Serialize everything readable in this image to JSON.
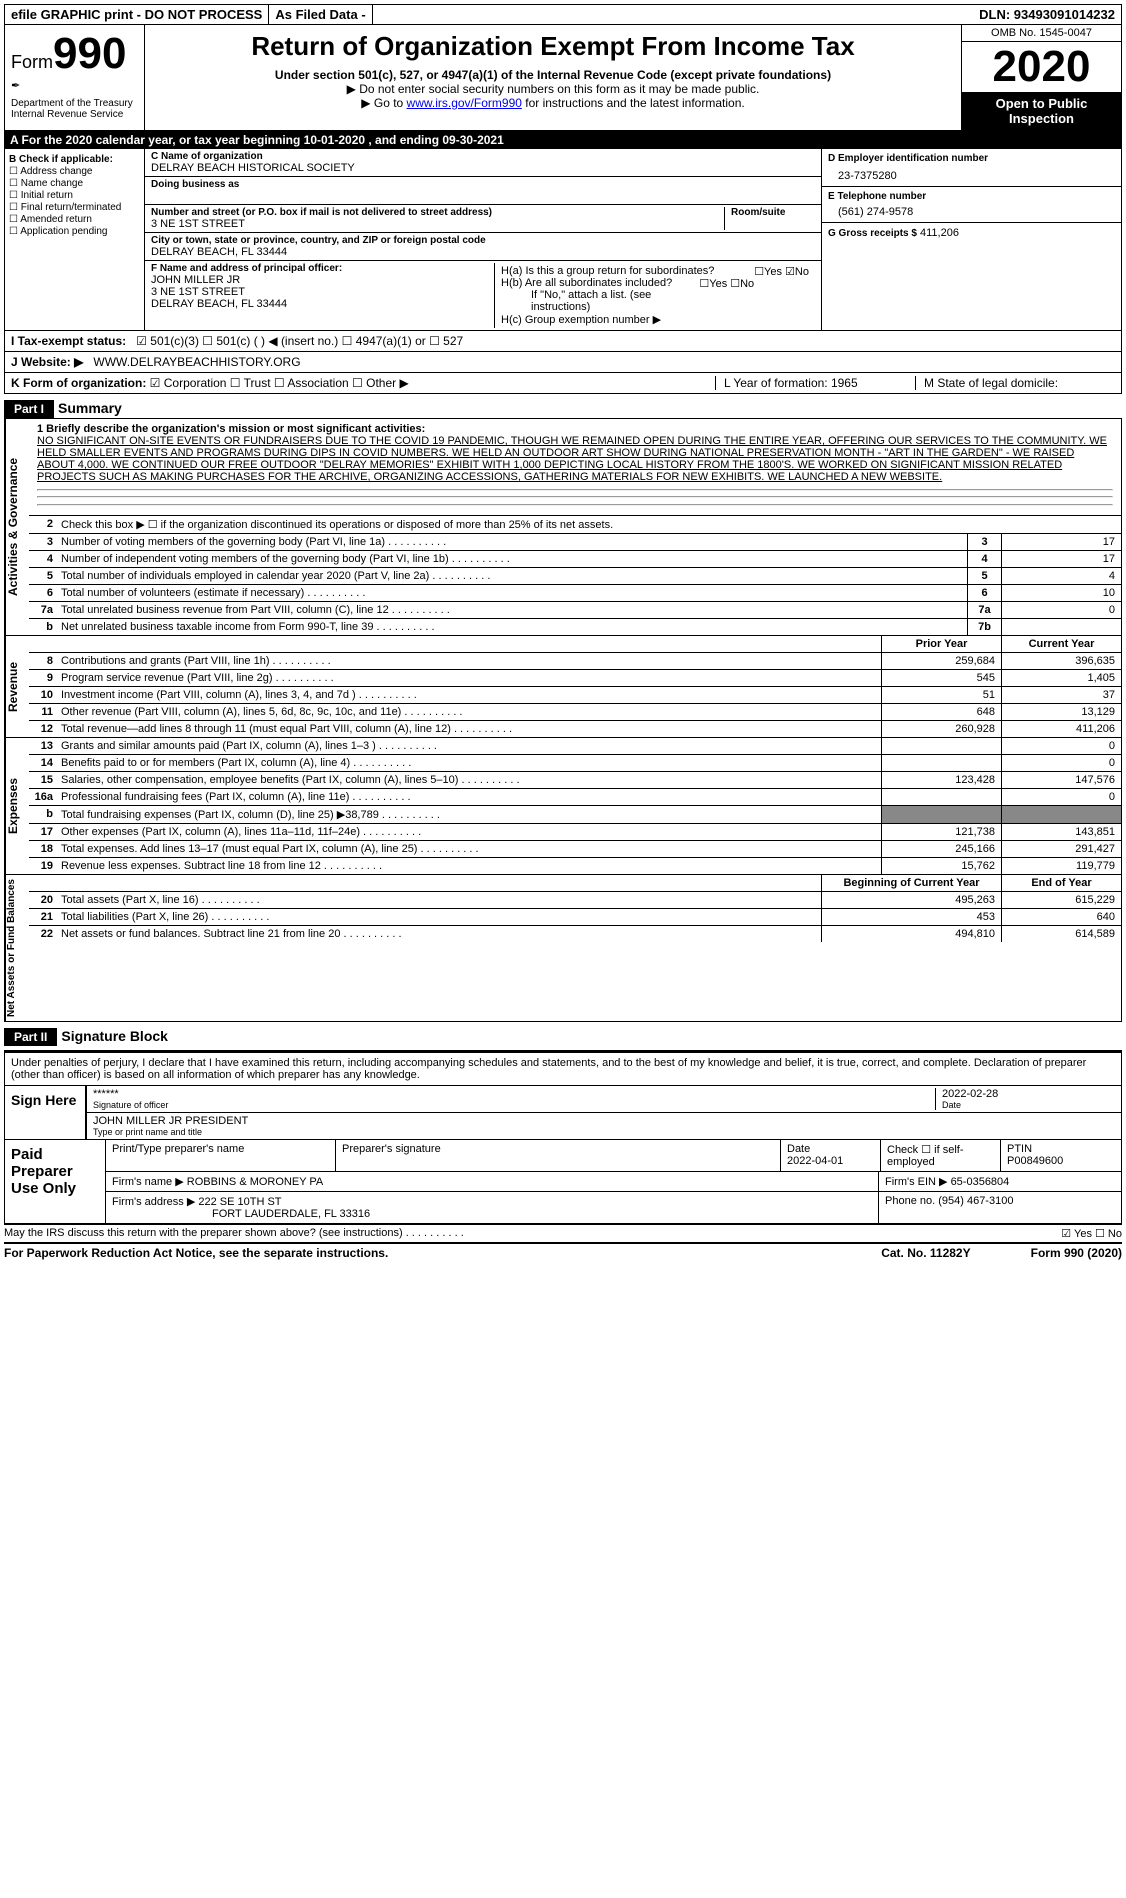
{
  "topbar": {
    "efile": "efile GRAPHIC print - DO NOT PROCESS",
    "asfiled": "As Filed Data -",
    "dln": "DLN: 93493091014232"
  },
  "header": {
    "form_prefix": "Form",
    "form_number": "990",
    "dept": "Department of the Treasury\nInternal Revenue Service",
    "title": "Return of Organization Exempt From Income Tax",
    "subtitle": "Under section 501(c), 527, or 4947(a)(1) of the Internal Revenue Code (except private foundations)",
    "note1": "▶ Do not enter social security numbers on this form as it may be made public.",
    "note2_pre": "▶ Go to ",
    "note2_link": "www.irs.gov/Form990",
    "note2_post": " for instructions and the latest information.",
    "omb": "OMB No. 1545-0047",
    "year": "2020",
    "open": "Open to Public Inspection"
  },
  "rowA": "A   For the 2020 calendar year, or tax year beginning 10-01-2020   , and ending 09-30-2021",
  "B": {
    "header": "B Check if applicable:",
    "items": [
      "Address change",
      "Name change",
      "Initial return",
      "Final return/terminated",
      "Amended return",
      "Application pending"
    ]
  },
  "C": {
    "name_label": "C Name of organization",
    "name": "DELRAY BEACH HISTORICAL SOCIETY",
    "dba_label": "Doing business as",
    "street_label": "Number and street (or P.O. box if mail is not delivered to street address)",
    "room_label": "Room/suite",
    "street": "3 NE 1ST STREET",
    "city_label": "City or town, state or province, country, and ZIP or foreign postal code",
    "city": "DELRAY BEACH, FL  33444",
    "officer_label": "F  Name and address of principal officer:",
    "officer": "JOHN MILLER JR\n3 NE 1ST STREET\nDELRAY BEACH, FL  33444"
  },
  "D": {
    "ein_label": "D Employer identification number",
    "ein": "23-7375280",
    "tel_label": "E Telephone number",
    "tel": "(561) 274-9578",
    "gross_label": "G Gross receipts $",
    "gross": "411,206"
  },
  "H": {
    "a": "H(a)  Is this a group return for subordinates?",
    "a_no": "☑No",
    "a_yes": "☐Yes",
    "b": "H(b)  Are all subordinates included?",
    "b_yn": "☐Yes  ☐No",
    "b_note": "If \"No,\" attach a list. (see instructions)",
    "c": "H(c)  Group exemption number ▶"
  },
  "I": {
    "label": "I   Tax-exempt status:",
    "opts": "☑ 501(c)(3)   ☐ 501(c) (  ) ◀ (insert no.)   ☐ 4947(a)(1) or   ☐ 527"
  },
  "J": {
    "label": "J   Website: ▶",
    "val": "WWW.DELRAYBEACHHISTORY.ORG"
  },
  "K": {
    "label": "K Form of organization:",
    "opts": "☑ Corporation  ☐ Trust  ☐ Association  ☐ Other ▶",
    "L": "L Year of formation: 1965",
    "M": "M State of legal domicile:"
  },
  "part1": {
    "tab": "Part I",
    "title": "Summary"
  },
  "mission": {
    "label": "1  Briefly describe the organization's mission or most significant activities:",
    "text": "NO SIGNIFICANT ON-SITE EVENTS OR FUNDRAISERS DUE TO THE COVID 19 PANDEMIC, THOUGH WE REMAINED OPEN DURING THE ENTIRE YEAR, OFFERING OUR SERVICES TO THE COMMUNITY. WE HELD SMALLER EVENTS AND PROGRAMS DURING DIPS IN COVID NUMBERS. WE HELD AN OUTDOOR ART SHOW DURING NATIONAL PRESERVATION MONTH - \"ART IN THE GARDEN\" - WE RAISED ABOUT 4,000. WE CONTINUED OUR FREE OUTDOOR \"DELRAY MEMORIES\" EXHIBIT WITH 1,000 DEPICTING LOCAL HISTORY FROM THE 1800'S. WE WORKED ON SIGNIFICANT MISSION RELATED PROJECTS SUCH AS MAKING PURCHASES FOR THE ARCHIVE, ORGANIZING ACCESSIONS, GATHERING MATERIALS FOR NEW EXHIBITS. WE LAUNCHED A NEW WEBSITE."
  },
  "gov": {
    "side": "Activities & Governance",
    "l2": "Check this box ▶ ☐ if the organization discontinued its operations or disposed of more than 25% of its net assets.",
    "lines": [
      {
        "n": "3",
        "t": "Number of voting members of the governing body (Part VI, line 1a)",
        "b": "3",
        "v": "17"
      },
      {
        "n": "4",
        "t": "Number of independent voting members of the governing body (Part VI, line 1b)",
        "b": "4",
        "v": "17"
      },
      {
        "n": "5",
        "t": "Total number of individuals employed in calendar year 2020 (Part V, line 2a)",
        "b": "5",
        "v": "4"
      },
      {
        "n": "6",
        "t": "Total number of volunteers (estimate if necessary)",
        "b": "6",
        "v": "10"
      },
      {
        "n": "7a",
        "t": "Total unrelated business revenue from Part VIII, column (C), line 12",
        "b": "7a",
        "v": "0"
      },
      {
        "n": "b",
        "t": "Net unrelated business taxable income from Form 990-T, line 39",
        "b": "7b",
        "v": ""
      }
    ]
  },
  "rev": {
    "side": "Revenue",
    "hdr_prior": "Prior Year",
    "hdr_curr": "Current Year",
    "lines": [
      {
        "n": "8",
        "t": "Contributions and grants (Part VIII, line 1h)",
        "p": "259,684",
        "c": "396,635"
      },
      {
        "n": "9",
        "t": "Program service revenue (Part VIII, line 2g)",
        "p": "545",
        "c": "1,405"
      },
      {
        "n": "10",
        "t": "Investment income (Part VIII, column (A), lines 3, 4, and 7d )",
        "p": "51",
        "c": "37"
      },
      {
        "n": "11",
        "t": "Other revenue (Part VIII, column (A), lines 5, 6d, 8c, 9c, 10c, and 11e)",
        "p": "648",
        "c": "13,129"
      },
      {
        "n": "12",
        "t": "Total revenue—add lines 8 through 11 (must equal Part VIII, column (A), line 12)",
        "p": "260,928",
        "c": "411,206"
      }
    ]
  },
  "exp": {
    "side": "Expenses",
    "lines": [
      {
        "n": "13",
        "t": "Grants and similar amounts paid (Part IX, column (A), lines 1–3 )",
        "p": "",
        "c": "0"
      },
      {
        "n": "14",
        "t": "Benefits paid to or for members (Part IX, column (A), line 4)",
        "p": "",
        "c": "0"
      },
      {
        "n": "15",
        "t": "Salaries, other compensation, employee benefits (Part IX, column (A), lines 5–10)",
        "p": "123,428",
        "c": "147,576"
      },
      {
        "n": "16a",
        "t": "Professional fundraising fees (Part IX, column (A), line 11e)",
        "p": "",
        "c": "0"
      },
      {
        "n": "b",
        "t": "Total fundraising expenses (Part IX, column (D), line 25) ▶38,789",
        "p": "—",
        "c": "—"
      },
      {
        "n": "17",
        "t": "Other expenses (Part IX, column (A), lines 11a–11d, 11f–24e)",
        "p": "121,738",
        "c": "143,851"
      },
      {
        "n": "18",
        "t": "Total expenses. Add lines 13–17 (must equal Part IX, column (A), line 25)",
        "p": "245,166",
        "c": "291,427"
      },
      {
        "n": "19",
        "t": "Revenue less expenses. Subtract line 18 from line 12",
        "p": "15,762",
        "c": "119,779"
      }
    ]
  },
  "net": {
    "side": "Net Assets or Fund Balances",
    "hdr_beg": "Beginning of Current Year",
    "hdr_end": "End of Year",
    "lines": [
      {
        "n": "20",
        "t": "Total assets (Part X, line 16)",
        "p": "495,263",
        "c": "615,229"
      },
      {
        "n": "21",
        "t": "Total liabilities (Part X, line 26)",
        "p": "453",
        "c": "640"
      },
      {
        "n": "22",
        "t": "Net assets or fund balances. Subtract line 21 from line 20",
        "p": "494,810",
        "c": "614,589"
      }
    ]
  },
  "part2": {
    "tab": "Part II",
    "title": "Signature Block"
  },
  "sig": {
    "decl": "Under penalties of perjury, I declare that I have examined this return, including accompanying schedules and statements, and to the best of my knowledge and belief, it is true, correct, and complete. Declaration of preparer (other than officer) is based on all information of which preparer has any knowledge.",
    "sign_here": "Sign Here",
    "stars": "******",
    "sig_label": "Signature of officer",
    "date": "2022-02-28",
    "date_label": "Date",
    "name": "JOHN MILLER JR  PRESIDENT",
    "name_label": "Type or print name and title"
  },
  "prep": {
    "label": "Paid Preparer Use Only",
    "h_name": "Print/Type preparer's name",
    "h_sig": "Preparer's signature",
    "h_date": "Date",
    "date": "2022-04-01",
    "check": "Check ☐ if self-employed",
    "ptin_l": "PTIN",
    "ptin": "P00849600",
    "firm_l": "Firm's name    ▶",
    "firm": "ROBBINS & MORONEY PA",
    "ein_l": "Firm's EIN ▶",
    "ein": "65-0356804",
    "addr_l": "Firm's address ▶",
    "addr": "222 SE 10TH ST",
    "addr2": "FORT LAUDERDALE, FL  33316",
    "phone_l": "Phone no.",
    "phone": "(954) 467-3100"
  },
  "foot": {
    "q": "May the IRS discuss this return with the preparer shown above? (see instructions)",
    "yn": "☑ Yes   ☐ No",
    "pra": "For Paperwork Reduction Act Notice, see the separate instructions.",
    "cat": "Cat. No. 11282Y",
    "form": "Form 990 (2020)"
  }
}
